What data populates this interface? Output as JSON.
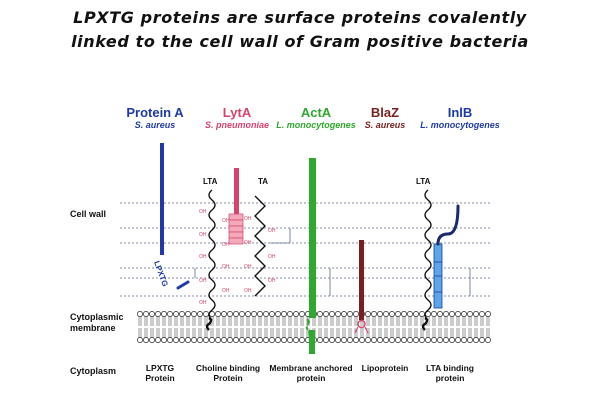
{
  "title": {
    "line1": "LPXTG proteins are surface proteins covalently",
    "line2": "linked to the cell wall of Gram positive bacteria"
  },
  "proteins": [
    {
      "name": "Protein A",
      "species": "S. aureus",
      "color": "#1f3aa8",
      "caption1": "LPXTG",
      "caption2": "Protein"
    },
    {
      "name": "LytA",
      "species": "S. pneumoniae",
      "color": "#d8436b",
      "caption1": "Choline binding",
      "caption2": "Protein"
    },
    {
      "name": "ActA",
      "species": "L. monocytogenes",
      "color": "#2ea82e",
      "caption1": "Membrane anchored",
      "caption2": "protein"
    },
    {
      "name": "BlaZ",
      "species": "S. aureus",
      "color": "#7a1f1f",
      "caption1": "Lipoprotein",
      "caption2": ""
    },
    {
      "name": "InlB",
      "species": "L. monocytogenes",
      "color": "#1f3aa8",
      "caption1": "LTA binding",
      "caption2": "protein"
    }
  ],
  "labels": {
    "cell_wall": "Cell wall",
    "membrane1": "Cytoplasmic",
    "membrane2": "membrane",
    "cytoplasm": "Cytoplasm",
    "lta_left": "LTA",
    "ta": "TA",
    "lta_right": "LTA",
    "lpxtg_motif": "LPXTG",
    "oh": "OH"
  }
}
